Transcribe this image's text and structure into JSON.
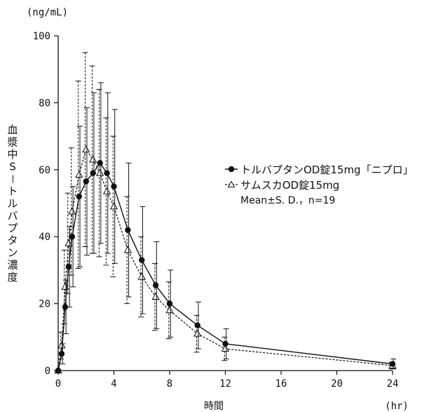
{
  "chart_data": {
    "type": "line",
    "unit_label": "(ng/mL)",
    "xlabel": "時間",
    "xunit": "(hr)",
    "ylabel": "血漿中S－トルバプタン濃度",
    "xlim": [
      0,
      24
    ],
    "ylim": [
      0,
      100
    ],
    "xticks": [
      0,
      4,
      8,
      12,
      16,
      20,
      24
    ],
    "yticks": [
      0,
      20,
      40,
      60,
      80,
      100
    ],
    "grid": false,
    "legend_position": "right",
    "legend_note": "Mean±S. D.，n=19",
    "series": [
      {
        "name": "トルバプタンOD錠15mg「ニプロ」",
        "marker": "filled-circle",
        "line": "solid",
        "x": [
          0,
          0.25,
          0.5,
          0.75,
          1,
          1.5,
          2,
          2.5,
          3,
          3.5,
          4,
          5,
          6,
          7,
          8,
          10,
          12,
          24
        ],
        "y": [
          0,
          5,
          19,
          31,
          40,
          52,
          56.5,
          59,
          62,
          59,
          55,
          42,
          33,
          25.5,
          20,
          13.5,
          8,
          2
        ],
        "sd": [
          0,
          3,
          8,
          12,
          15,
          21,
          22,
          24,
          24,
          24,
          23,
          20,
          16,
          13,
          10,
          7,
          4.5,
          1.5
        ]
      },
      {
        "name": "サムスカOD錠15mg",
        "marker": "open-triangle",
        "line": "dashed",
        "x": [
          0,
          0.25,
          0.5,
          0.75,
          1,
          1.5,
          2,
          2.5,
          3,
          3.5,
          4,
          5,
          6,
          7,
          8,
          10,
          12,
          24
        ],
        "y": [
          0,
          7.5,
          25,
          38,
          47.5,
          58.5,
          66,
          63,
          59,
          53.5,
          49,
          36,
          28,
          22,
          18,
          11,
          6.5,
          1.5
        ],
        "sd": [
          0,
          4,
          11,
          15,
          19,
          28,
          29,
          28,
          25,
          22,
          21,
          16,
          12,
          10,
          8.5,
          5.5,
          3.5,
          1
        ]
      }
    ]
  }
}
